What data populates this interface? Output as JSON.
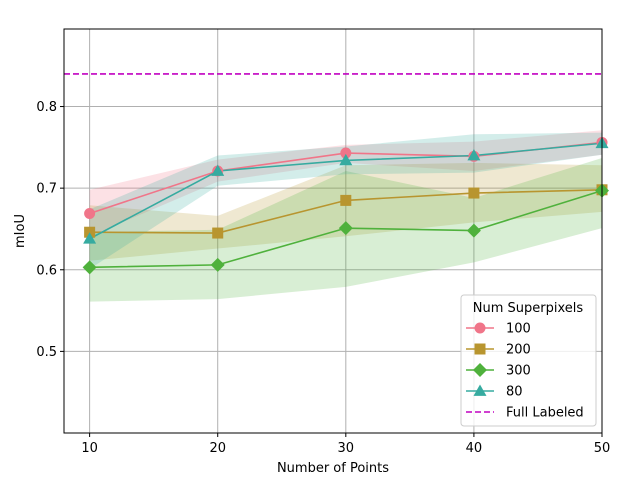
{
  "chart_data": {
    "type": "line",
    "title": "",
    "xlabel": "Number of Points",
    "ylabel": "mIoU",
    "x": [
      10,
      20,
      30,
      40,
      50
    ],
    "xlim": [
      8,
      50
    ],
    "ylim": [
      0.4,
      0.895
    ],
    "xticks": [
      10,
      20,
      30,
      40,
      50
    ],
    "yticks": [
      0.5,
      0.6,
      0.7,
      0.8
    ],
    "ytick_labels": [
      "0.5",
      "0.6",
      "0.7",
      "0.8"
    ],
    "grid": true,
    "legend_title": "Num Superpixels",
    "legend_position": "lower-right",
    "series": [
      {
        "name": "100",
        "color": "#f07589",
        "marker": "circle",
        "values": [
          0.669,
          0.721,
          0.743,
          0.739,
          0.756
        ],
        "lower": [
          0.641,
          0.708,
          0.731,
          0.721,
          0.741
        ],
        "upper": [
          0.698,
          0.735,
          0.753,
          0.757,
          0.771
        ]
      },
      {
        "name": "200",
        "color": "#b8952f",
        "marker": "square",
        "values": [
          0.646,
          0.645,
          0.685,
          0.694,
          0.698
        ],
        "lower": [
          0.611,
          0.626,
          0.641,
          0.658,
          0.671
        ],
        "upper": [
          0.679,
          0.666,
          0.728,
          0.731,
          0.728
        ]
      },
      {
        "name": "300",
        "color": "#4fb13c",
        "marker": "diamond",
        "values": [
          0.603,
          0.606,
          0.651,
          0.648,
          0.697
        ],
        "lower": [
          0.561,
          0.564,
          0.579,
          0.609,
          0.651
        ],
        "upper": [
          0.646,
          0.649,
          0.721,
          0.688,
          0.737
        ]
      },
      {
        "name": "80",
        "color": "#36aba0",
        "marker": "triangle",
        "values": [
          0.638,
          0.721,
          0.734,
          0.74,
          0.755
        ],
        "lower": [
          0.601,
          0.703,
          0.717,
          0.719,
          0.741
        ],
        "upper": [
          0.674,
          0.74,
          0.751,
          0.766,
          0.768
        ]
      }
    ],
    "reference_line": {
      "name": "Full Labeled",
      "value": 0.84,
      "color": "#c000c0",
      "style": "dashed"
    }
  }
}
